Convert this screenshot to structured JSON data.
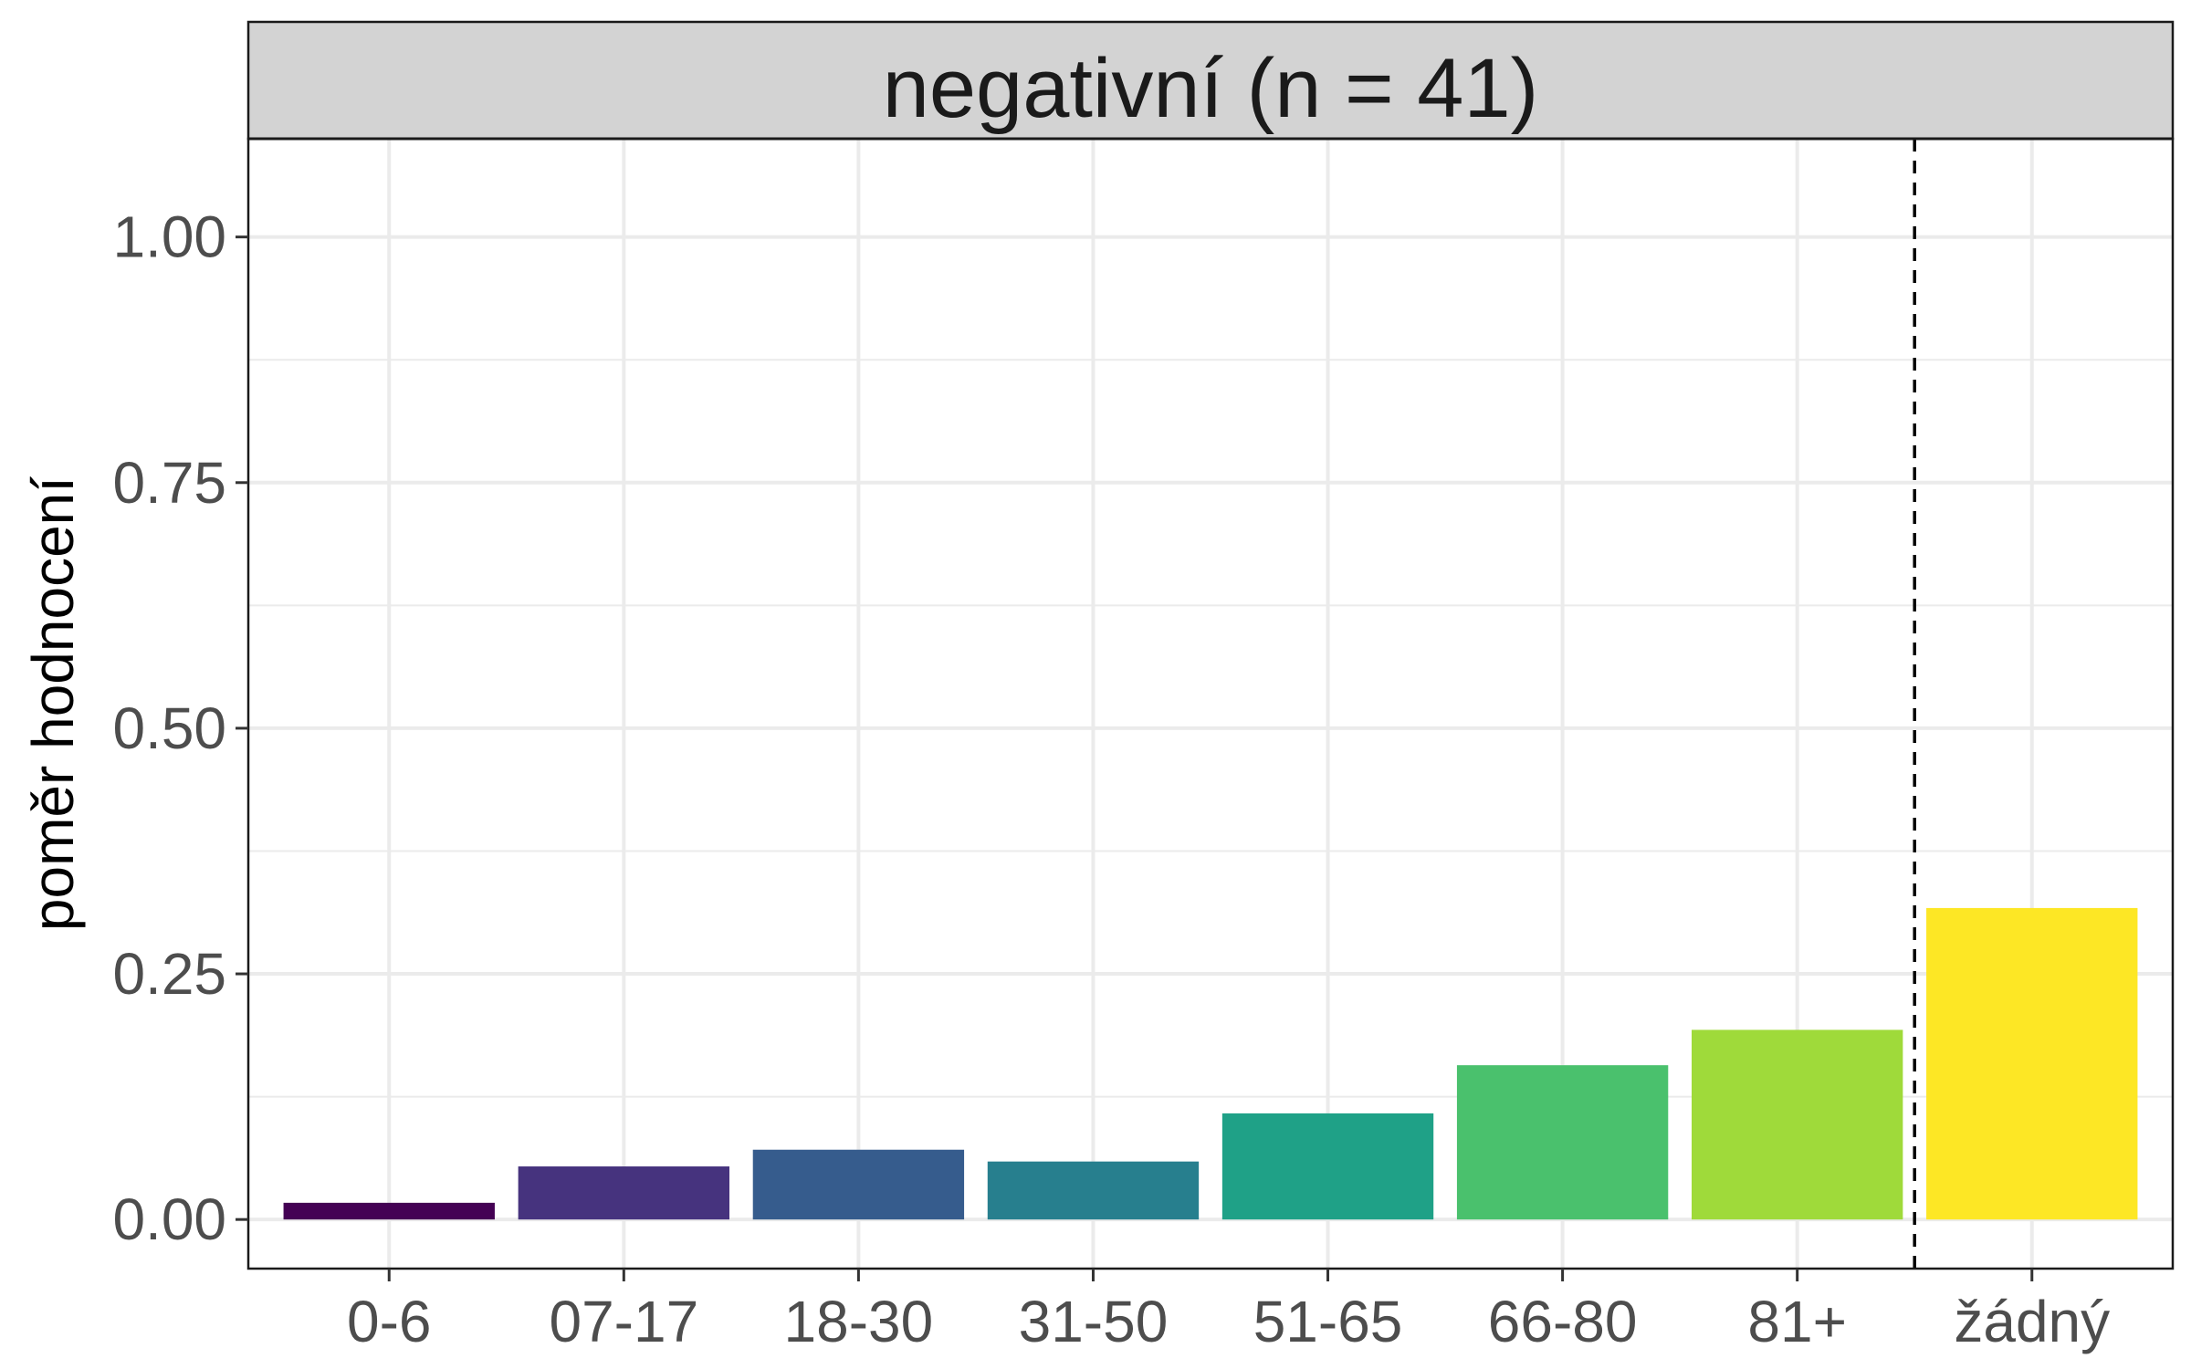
{
  "chart_data": {
    "type": "bar",
    "facet_title": "negativní (n = 41)",
    "xlabel": "",
    "ylabel": "poměr hodnocení",
    "categories": [
      "0-6",
      "07-17",
      "18-30",
      "31-50",
      "51-65",
      "66-80",
      "81+",
      "žádný"
    ],
    "values": [
      0.017,
      0.054,
      0.071,
      0.059,
      0.108,
      0.157,
      0.193,
      0.317
    ],
    "colors": [
      "#440154",
      "#46337E",
      "#365C8D",
      "#277F8E",
      "#1FA187",
      "#4AC16D",
      "#9FDA3A",
      "#FDE725"
    ],
    "ylim": [
      -0.05,
      1.1
    ],
    "yticks": [
      0.0,
      0.25,
      0.5,
      0.75,
      1.0
    ],
    "ytick_labels": [
      "0.00",
      "0.25",
      "0.50",
      "0.75",
      "1.00"
    ],
    "reference_line": {
      "between_categories": [
        "81+",
        "žádný"
      ],
      "style": "dashed",
      "color": "#000000"
    },
    "grid": true,
    "legend": "none",
    "strip_fill": "#d3d3d3"
  }
}
